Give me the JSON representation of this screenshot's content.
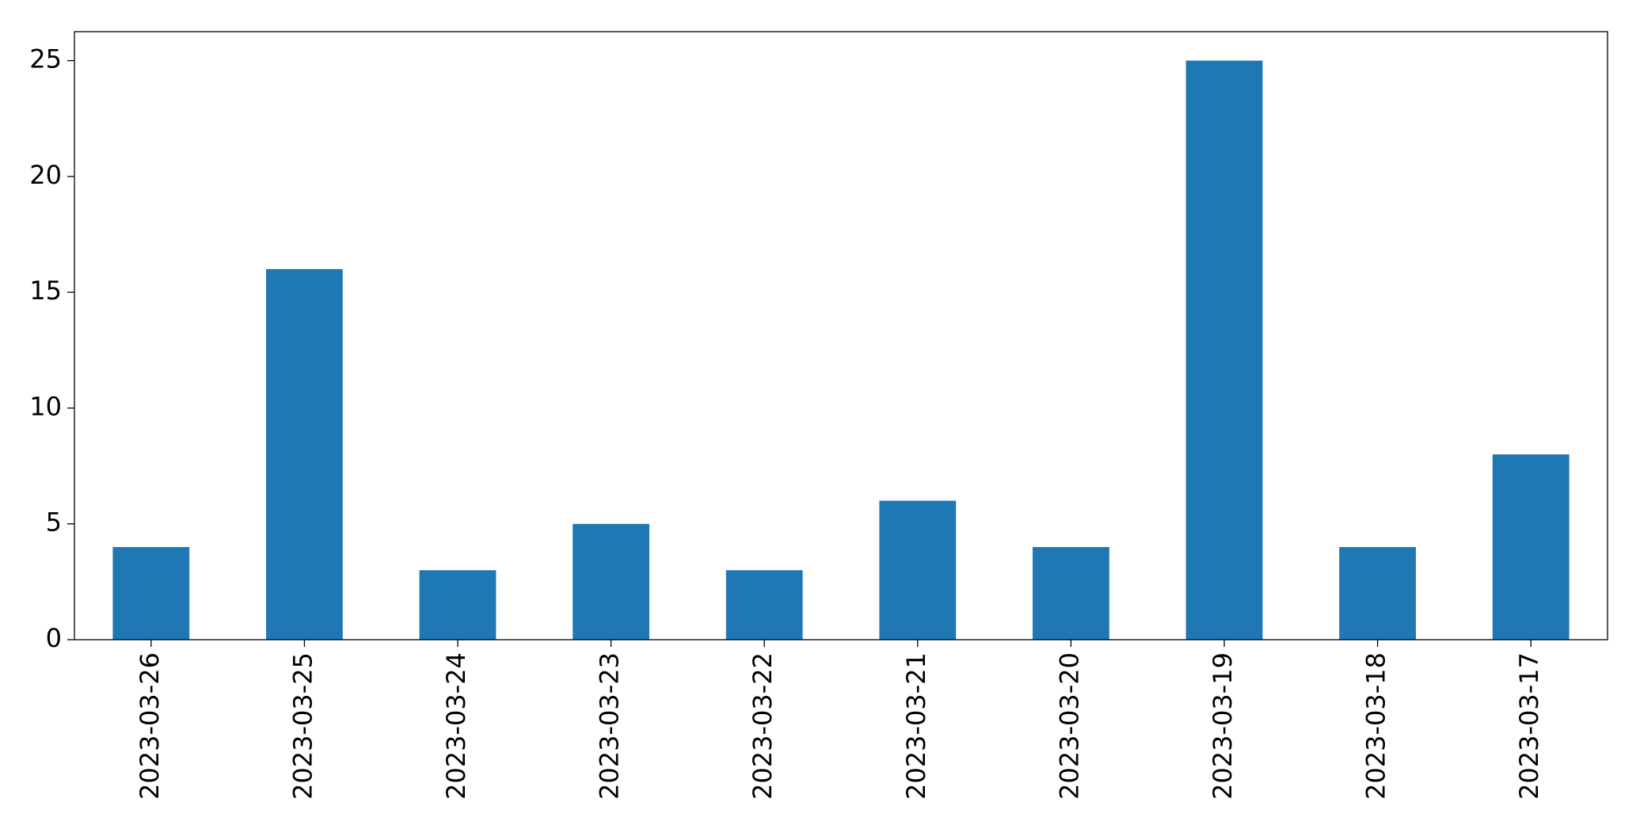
{
  "chart_data": {
    "type": "bar",
    "categories": [
      "2023-03-26",
      "2023-03-25",
      "2023-03-24",
      "2023-03-23",
      "2023-03-22",
      "2023-03-21",
      "2023-03-20",
      "2023-03-19",
      "2023-03-18",
      "2023-03-17"
    ],
    "values": [
      4,
      16,
      3,
      5,
      3,
      6,
      4,
      25,
      4,
      8
    ],
    "color": "#1f77b4",
    "ylim": [
      0,
      26.25
    ],
    "yticks": [
      0,
      5,
      10,
      15,
      20,
      25
    ],
    "grid": false
  }
}
